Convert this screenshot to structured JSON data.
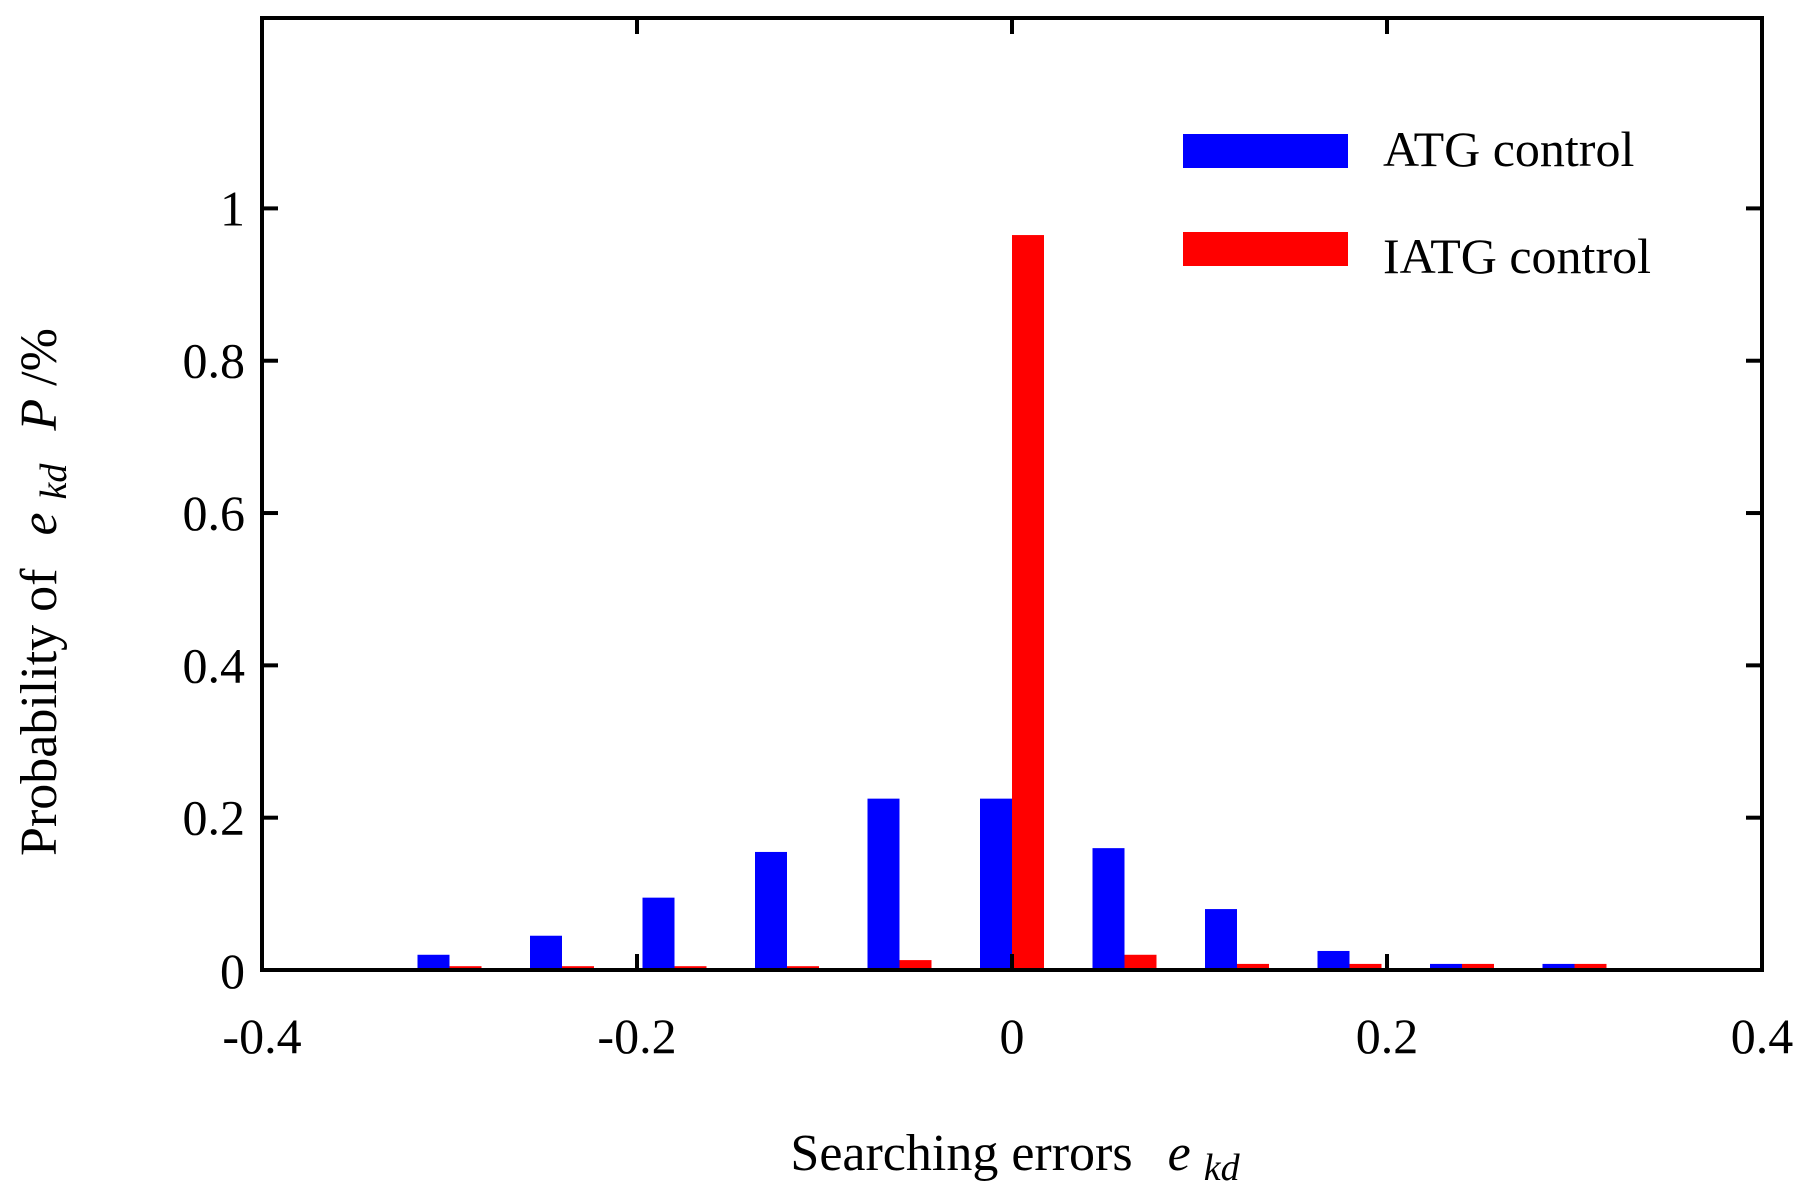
{
  "chart_data": {
    "type": "bar",
    "xlabel": "Searching errors",
    "xlabel_symbol": "e",
    "xlabel_subscript": "kd",
    "ylabel_prefix": "Probability of",
    "ylabel_symbol": "e",
    "ylabel_subscript": "kd",
    "ylabel_suffix_symbol": "P",
    "ylabel_suffix": "/%",
    "xlim": [
      -0.4,
      0.4
    ],
    "ylim": [
      0,
      1.25
    ],
    "xticks": [
      -0.4,
      -0.2,
      0,
      0.2,
      0.4
    ],
    "xtick_labels": [
      "-0.4",
      "-0.2",
      "0",
      "0.2",
      "0.4"
    ],
    "yticks": [
      0,
      0.2,
      0.4,
      0.6,
      0.8,
      1
    ],
    "ytick_labels": [
      "0",
      "0.2",
      "0.4",
      "0.6",
      "0.8",
      "1"
    ],
    "grid": false,
    "legend_position": "top-right",
    "categories": [
      -0.3,
      -0.24,
      -0.18,
      -0.12,
      -0.06,
      0,
      0.06,
      0.12,
      0.18,
      0.24,
      0.3
    ],
    "series": [
      {
        "name": "ATG control",
        "color": "#0000ff",
        "values": [
          0.02,
          0.045,
          0.095,
          0.155,
          0.225,
          0.225,
          0.16,
          0.08,
          0.025,
          0.008,
          0.008
        ]
      },
      {
        "name": "IATG control",
        "color": "#ff0000",
        "values": [
          0.005,
          0.005,
          0.005,
          0.005,
          0.013,
          0.965,
          0.02,
          0.008,
          0.008,
          0.008,
          0.008
        ]
      }
    ]
  }
}
